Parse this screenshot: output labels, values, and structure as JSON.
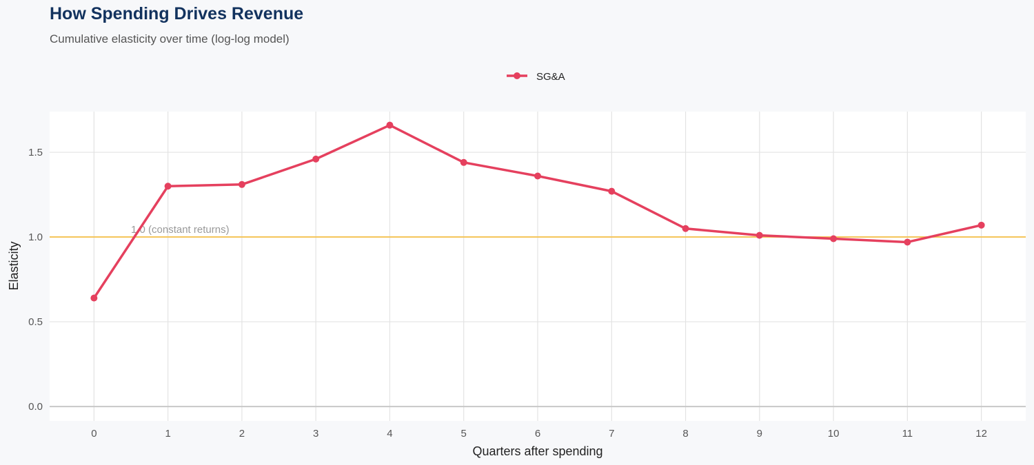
{
  "title": "How Spending Drives Revenue",
  "subtitle": "Cumulative elasticity over time (log-log model)",
  "chart_data": {
    "type": "line",
    "title": "How Spending Drives Revenue",
    "subtitle": "Cumulative elasticity over time (log-log model)",
    "xlabel": "Quarters after spending",
    "ylabel": "Elasticity",
    "x": [
      0,
      1,
      2,
      3,
      4,
      5,
      6,
      7,
      8,
      9,
      10,
      11,
      12
    ],
    "x_ticks": [
      "0",
      "1",
      "2",
      "3",
      "4",
      "5",
      "6",
      "7",
      "8",
      "9",
      "10",
      "11",
      "12"
    ],
    "y_ticks": [
      "0.0",
      "0.5",
      "1.0",
      "1.5"
    ],
    "y_tick_values": [
      0,
      0.5,
      1.0,
      1.5
    ],
    "xlim": [
      -0.6,
      12.6
    ],
    "ylim": [
      -0.085,
      1.74
    ],
    "grid": true,
    "legend_placement": "top",
    "series": [
      {
        "name": "SG&A",
        "color": "#e5405e",
        "values": [
          0.64,
          1.3,
          1.31,
          1.46,
          1.66,
          1.44,
          1.36,
          1.27,
          1.05,
          1.01,
          0.99,
          0.97,
          1.07
        ]
      }
    ],
    "reference_line": {
      "y": 1.0,
      "label": "1.0 (constant returns)",
      "color": "#f5c55a"
    }
  }
}
